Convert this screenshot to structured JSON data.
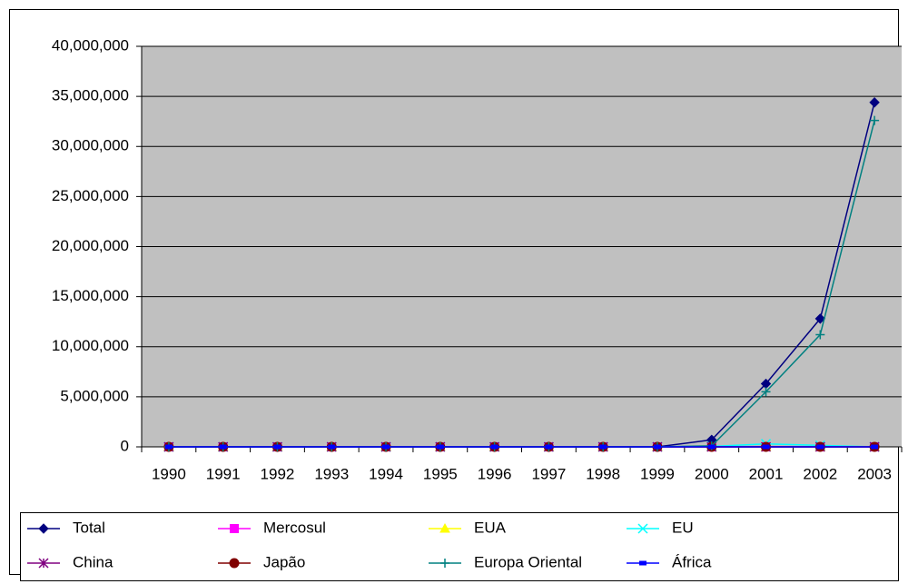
{
  "chart_data": {
    "type": "line",
    "categories": [
      "1990",
      "1991",
      "1992",
      "1993",
      "1994",
      "1995",
      "1996",
      "1997",
      "1998",
      "1999",
      "2000",
      "2001",
      "2002",
      "2003"
    ],
    "ylim": [
      0,
      40000000
    ],
    "yticks": [
      0,
      {
        "value": 5000000,
        "label": "5,000,000"
      },
      {
        "value": 10000000,
        "label": "10,000,000"
      },
      {
        "value": 15000000,
        "label": "15,000,000"
      },
      {
        "value": 20000000,
        "label": "20,000,000"
      },
      {
        "value": 25000000,
        "label": "25,000,000"
      },
      {
        "value": 30000000,
        "label": "30,000,000"
      },
      {
        "value": 35000000,
        "label": "35,000,000"
      },
      {
        "value": 40000000,
        "label": "40,000,000"
      }
    ],
    "grid": true,
    "legend": "bottom",
    "series": [
      {
        "name": "Total",
        "color": "#000080",
        "marker": "diamond",
        "values": [
          0,
          0,
          0,
          0,
          0,
          0,
          0,
          0,
          0,
          0,
          700000,
          6300000,
          12800000,
          34400000
        ]
      },
      {
        "name": "Mercosul",
        "color": "#ff00ff",
        "marker": "square",
        "values": [
          0,
          0,
          0,
          0,
          0,
          0,
          0,
          0,
          0,
          0,
          0,
          0,
          0,
          0
        ]
      },
      {
        "name": "EUA",
        "color": "#ffff00",
        "marker": "triangle",
        "values": [
          0,
          0,
          0,
          0,
          0,
          0,
          0,
          0,
          0,
          0,
          0,
          0,
          0,
          0
        ]
      },
      {
        "name": "EU",
        "color": "#00ffff",
        "marker": "x",
        "values": [
          0,
          0,
          0,
          0,
          0,
          0,
          0,
          0,
          0,
          0,
          50000,
          300000,
          150000,
          0
        ]
      },
      {
        "name": "China",
        "color": "#800080",
        "marker": "star",
        "values": [
          0,
          0,
          0,
          0,
          0,
          0,
          0,
          0,
          0,
          0,
          0,
          0,
          0,
          0
        ]
      },
      {
        "name": "Japão",
        "color": "#800000",
        "marker": "circle",
        "values": [
          0,
          0,
          0,
          0,
          0,
          0,
          0,
          0,
          0,
          0,
          0,
          0,
          0,
          0
        ]
      },
      {
        "name": "Europa Oriental",
        "color": "#008080",
        "marker": "plus",
        "values": [
          0,
          0,
          0,
          0,
          0,
          0,
          0,
          0,
          0,
          0,
          100000,
          5500000,
          11200000,
          32600000
        ]
      },
      {
        "name": "África",
        "color": "#0000ff",
        "marker": "dash",
        "values": [
          0,
          0,
          0,
          0,
          0,
          0,
          0,
          0,
          0,
          0,
          0,
          0,
          0,
          0
        ]
      }
    ]
  }
}
